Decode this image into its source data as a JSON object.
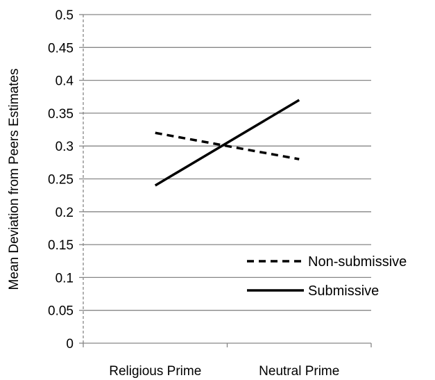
{
  "chart_data": {
    "type": "line",
    "title": "",
    "xlabel": "",
    "ylabel": "Mean Deviation from Peers Estimates",
    "categories": [
      "Religious Prime",
      "Neutral Prime"
    ],
    "series": [
      {
        "name": "Non-submissive",
        "values": [
          0.32,
          0.28
        ],
        "style": "dashed",
        "color": "#000000"
      },
      {
        "name": "Submissive",
        "values": [
          0.24,
          0.37
        ],
        "style": "solid",
        "color": "#000000"
      }
    ],
    "ylim": [
      0,
      0.5
    ],
    "yticks": [
      "0",
      "0.05",
      "0.1",
      "0.15",
      "0.2",
      "0.25",
      "0.3",
      "0.35",
      "0.4",
      "0.45",
      "0.5"
    ],
    "grid": true,
    "legend": "right"
  },
  "colors": {
    "grid": "#868686",
    "axis": "#868686",
    "line": "#000000"
  }
}
